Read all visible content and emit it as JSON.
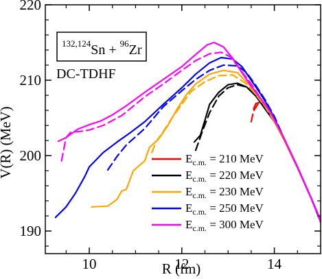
{
  "chart_data": {
    "type": "line",
    "xlabel": "R (fm)",
    "ylabel": "V(R) (MeV)",
    "xlim": [
      9.05,
      15.0
    ],
    "ylim": [
      187.0,
      220.0
    ],
    "xticks": [
      10,
      12,
      14
    ],
    "yticks": [
      190,
      200,
      210,
      220
    ],
    "xtick_labels": [
      "10",
      "12",
      "14"
    ],
    "ytick_labels": [
      "190",
      "200",
      "210",
      "220"
    ],
    "grid": false,
    "legend_position": "bottom-right",
    "annotations": {
      "reaction": {
        "sup1": "132,124",
        "base1": "Sn + ",
        "sup2": "96",
        "base2": "Zr"
      },
      "method": "DC-TDHF"
    },
    "series": [
      {
        "legend_sub": "c.m.",
        "legend_value": " = 210 MeV",
        "color": "#ff0000",
        "solid": [
          [
            13.55,
            206.2
          ],
          [
            13.6,
            206.9
          ],
          [
            13.7,
            207.1
          ],
          [
            13.8,
            206.7
          ],
          [
            14.0,
            204.7
          ],
          [
            14.2,
            202.2
          ],
          [
            14.5,
            198.4
          ],
          [
            14.8,
            194.3
          ],
          [
            15.0,
            191.4
          ]
        ],
        "dashed": [
          [
            13.5,
            204.5
          ],
          [
            13.55,
            205.9
          ],
          [
            13.65,
            206.9
          ],
          [
            13.75,
            207.0
          ],
          [
            13.9,
            205.8
          ],
          [
            14.2,
            202.3
          ],
          [
            14.5,
            198.4
          ],
          [
            14.8,
            194.3
          ],
          [
            15.0,
            191.2
          ]
        ]
      },
      {
        "legend_sub": "c.m.",
        "legend_value": " = 220 MeV",
        "color": "#000000",
        "solid": [
          [
            12.27,
            201.8
          ],
          [
            12.4,
            202.7
          ],
          [
            12.5,
            204.7
          ],
          [
            12.6,
            206.8
          ],
          [
            12.8,
            208.4
          ],
          [
            13.0,
            209.4
          ],
          [
            13.2,
            209.6
          ],
          [
            13.4,
            209.1
          ],
          [
            13.6,
            207.9
          ],
          [
            13.8,
            206.2
          ],
          [
            14.0,
            204.5
          ],
          [
            14.2,
            202.2
          ],
          [
            14.5,
            198.4
          ],
          [
            14.8,
            194.3
          ],
          [
            15.0,
            191.4
          ]
        ],
        "dashed": [
          [
            12.3,
            200.7
          ],
          [
            12.45,
            203.3
          ],
          [
            12.6,
            205.7
          ],
          [
            12.8,
            207.9
          ],
          [
            13.0,
            209.0
          ],
          [
            13.2,
            209.4
          ],
          [
            13.4,
            209.1
          ],
          [
            13.6,
            208.0
          ],
          [
            13.8,
            206.2
          ],
          [
            14.0,
            204.5
          ],
          [
            14.2,
            202.2
          ],
          [
            14.5,
            198.4
          ],
          [
            14.8,
            194.3
          ],
          [
            15.0,
            191.2
          ]
        ]
      },
      {
        "legend_sub": "c.m.",
        "legend_value": " = 230 MeV",
        "color": "#ffa500",
        "solid": [
          [
            10.05,
            193.2
          ],
          [
            10.4,
            193.3
          ],
          [
            10.6,
            194.2
          ],
          [
            10.7,
            195.3
          ],
          [
            10.8,
            195.5
          ],
          [
            10.95,
            198.0
          ],
          [
            11.2,
            199.3
          ],
          [
            11.3,
            201.1
          ],
          [
            11.5,
            202.2
          ],
          [
            11.7,
            204.0
          ],
          [
            11.9,
            206.2
          ],
          [
            12.1,
            208.1
          ],
          [
            12.3,
            209.5
          ],
          [
            12.6,
            210.8
          ],
          [
            12.9,
            211.3
          ],
          [
            13.2,
            211.0
          ],
          [
            13.5,
            209.1
          ],
          [
            13.7,
            207.4
          ],
          [
            13.9,
            205.7
          ],
          [
            14.2,
            202.2
          ],
          [
            14.5,
            198.4
          ],
          [
            14.8,
            194.3
          ],
          [
            15.0,
            191.4
          ]
        ],
        "dashed": [
          [
            11.35,
            200.4
          ],
          [
            11.45,
            201.9
          ],
          [
            11.6,
            203.2
          ],
          [
            11.8,
            205.1
          ],
          [
            12.0,
            206.8
          ],
          [
            12.2,
            208.5
          ],
          [
            12.5,
            209.8
          ],
          [
            12.8,
            210.6
          ],
          [
            13.1,
            210.7
          ],
          [
            13.4,
            209.5
          ],
          [
            13.6,
            208.1
          ],
          [
            13.8,
            206.5
          ],
          [
            14.0,
            204.5
          ],
          [
            14.2,
            202.2
          ],
          [
            14.5,
            198.4
          ],
          [
            14.8,
            194.3
          ],
          [
            15.0,
            191.2
          ]
        ]
      },
      {
        "legend_sub": "c.m.",
        "legend_value": " = 250 MeV",
        "color": "#0000ff",
        "solid": [
          [
            9.27,
            191.8
          ],
          [
            9.5,
            193.2
          ],
          [
            9.7,
            195.0
          ],
          [
            9.9,
            197.2
          ],
          [
            10.0,
            198.5
          ],
          [
            10.3,
            200.4
          ],
          [
            10.6,
            201.8
          ],
          [
            10.9,
            203.1
          ],
          [
            11.2,
            204.5
          ],
          [
            11.6,
            206.8
          ],
          [
            12.0,
            209.0
          ],
          [
            12.3,
            210.8
          ],
          [
            12.6,
            212.3
          ],
          [
            12.85,
            213.0
          ],
          [
            13.1,
            212.8
          ],
          [
            13.3,
            211.8
          ],
          [
            13.5,
            210.0
          ],
          [
            13.7,
            208.2
          ],
          [
            13.9,
            206.2
          ],
          [
            14.2,
            202.4
          ],
          [
            14.5,
            198.5
          ],
          [
            14.8,
            194.3
          ],
          [
            15.0,
            191.4
          ]
        ],
        "dashed": [
          [
            10.4,
            198.1
          ],
          [
            10.6,
            199.9
          ],
          [
            10.8,
            201.4
          ],
          [
            11.0,
            202.5
          ],
          [
            11.2,
            203.6
          ],
          [
            11.6,
            206.5
          ],
          [
            12.0,
            208.6
          ],
          [
            12.3,
            210.1
          ],
          [
            12.6,
            211.3
          ],
          [
            12.9,
            212.0
          ],
          [
            13.2,
            211.9
          ],
          [
            13.4,
            211.0
          ],
          [
            13.6,
            209.3
          ],
          [
            13.8,
            207.4
          ],
          [
            14.0,
            205.2
          ],
          [
            14.2,
            202.4
          ],
          [
            14.5,
            198.5
          ],
          [
            14.8,
            194.3
          ],
          [
            15.0,
            191.2
          ]
        ]
      },
      {
        "legend_sub": "c.m.",
        "legend_value": " = 300 MeV",
        "color": "#ff00ff",
        "solid": [
          [
            9.33,
            201.9
          ],
          [
            9.5,
            202.4
          ],
          [
            9.75,
            203.5
          ],
          [
            10.0,
            204.1
          ],
          [
            10.25,
            204.6
          ],
          [
            10.5,
            205.4
          ],
          [
            10.8,
            206.6
          ],
          [
            11.2,
            208.4
          ],
          [
            11.6,
            210.1
          ],
          [
            12.0,
            211.8
          ],
          [
            12.3,
            213.4
          ],
          [
            12.55,
            214.7
          ],
          [
            12.7,
            215.0
          ],
          [
            12.9,
            214.4
          ],
          [
            13.1,
            212.9
          ],
          [
            13.3,
            211.0
          ],
          [
            13.5,
            209.2
          ],
          [
            13.7,
            207.6
          ],
          [
            13.9,
            205.9
          ],
          [
            14.2,
            202.4
          ],
          [
            14.5,
            198.5
          ],
          [
            14.8,
            194.3
          ],
          [
            15.0,
            191.4
          ]
        ],
        "dashed": [
          [
            9.4,
            199.3
          ],
          [
            9.5,
            202.4
          ],
          [
            9.6,
            203.1
          ],
          [
            9.8,
            203.2
          ],
          [
            10.0,
            203.4
          ],
          [
            10.3,
            204.0
          ],
          [
            10.7,
            205.3
          ],
          [
            11.2,
            207.8
          ],
          [
            11.6,
            209.5
          ],
          [
            12.0,
            211.3
          ],
          [
            12.3,
            212.6
          ],
          [
            12.6,
            213.5
          ],
          [
            12.85,
            213.7
          ],
          [
            13.05,
            213.1
          ],
          [
            13.25,
            211.5
          ],
          [
            13.5,
            209.5
          ],
          [
            13.7,
            207.6
          ],
          [
            13.9,
            205.9
          ],
          [
            14.2,
            202.4
          ],
          [
            14.5,
            198.5
          ],
          [
            14.8,
            194.3
          ],
          [
            15.0,
            191.2
          ]
        ]
      }
    ]
  }
}
